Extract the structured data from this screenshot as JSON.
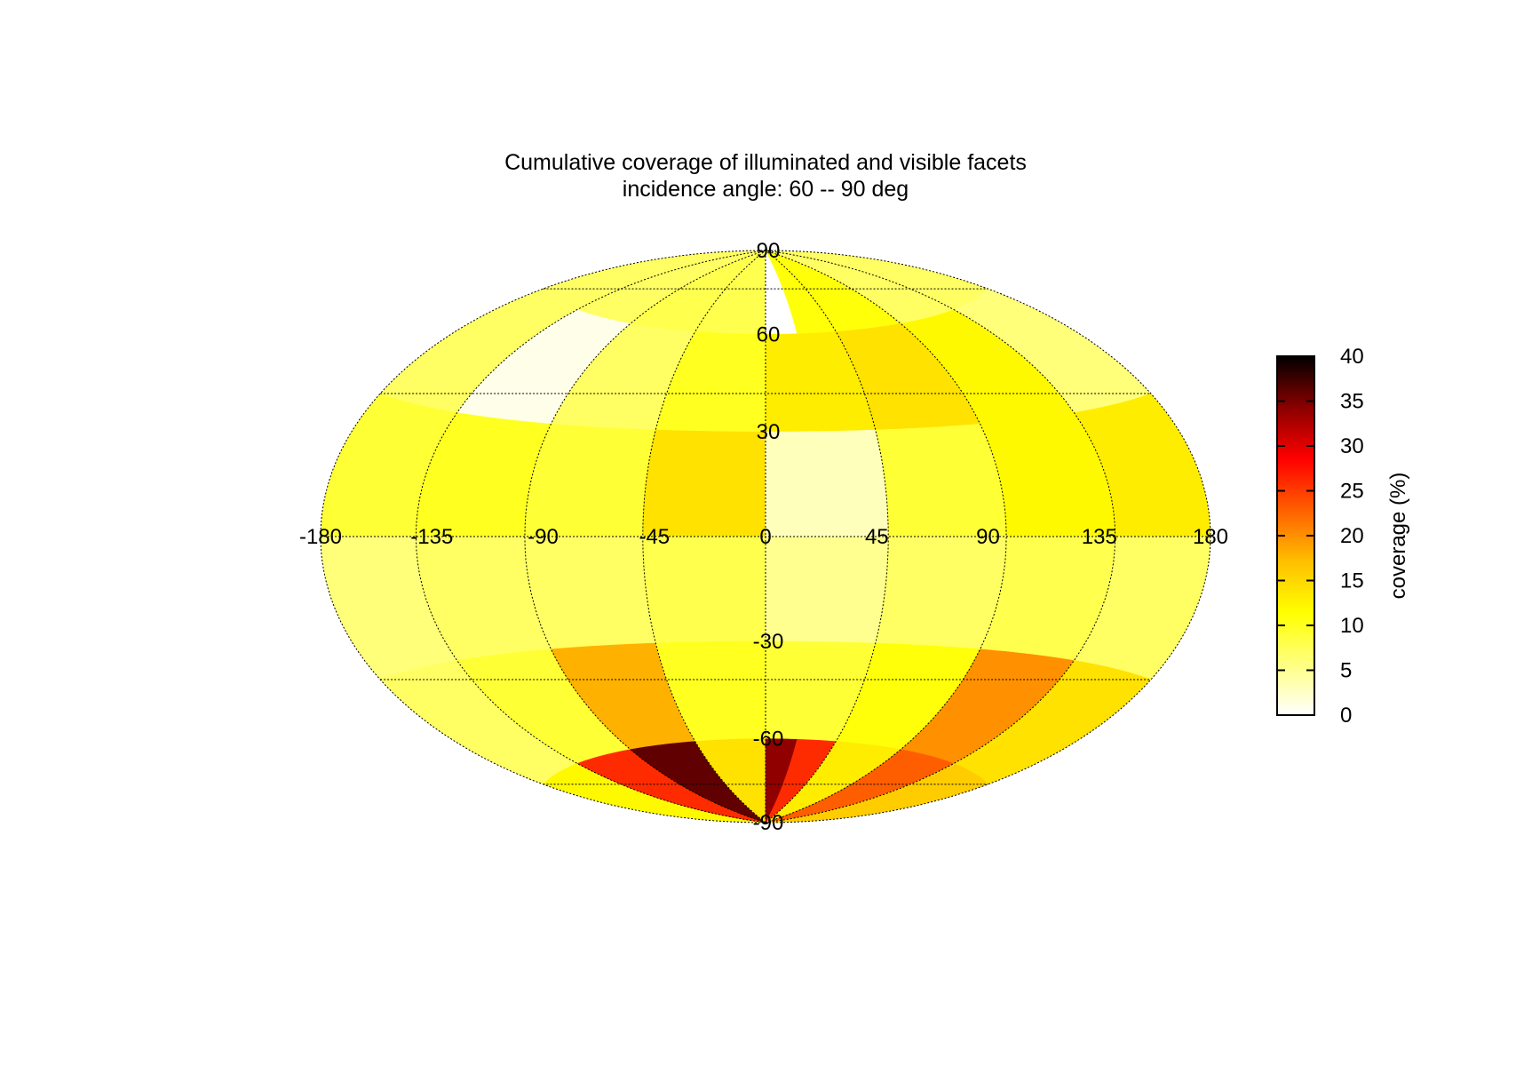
{
  "chart_data": {
    "type": "heatmap",
    "projection": "Hammer-Aitoff (equal-area ellipse)",
    "title": [
      "Cumulative coverage of illuminated and visible facets",
      "incidence angle: 60 -- 90 deg"
    ],
    "xlabel": "",
    "ylabel": "",
    "xlim": [
      -180,
      180
    ],
    "ylim": [
      -90,
      90
    ],
    "lon_ticks": [
      -180,
      -135,
      -90,
      -45,
      0,
      45,
      90,
      135,
      180
    ],
    "lat_ticks": [
      90,
      60,
      30,
      -30,
      -60,
      -90
    ],
    "lon_tick_labels": [
      "-180",
      "-135",
      "-90",
      "-45",
      "0",
      "45",
      "90",
      "135",
      "180"
    ],
    "lat_tick_labels": [
      "90",
      "60",
      "30",
      "-30",
      "-60",
      "-90"
    ],
    "grid": true,
    "colorbar": {
      "label": "coverage (%)",
      "min": 0,
      "max": 40,
      "ticks": [
        0,
        5,
        10,
        15,
        20,
        25,
        30,
        35,
        40
      ],
      "tick_labels": [
        "0",
        "5",
        "10",
        "15",
        "20",
        "25",
        "30",
        "35",
        "40"
      ],
      "colors": [
        "#ffffff",
        "#ffff80",
        "#ffff00",
        "#ffbf00",
        "#ff6000",
        "#ff0000",
        "#8b0000",
        "#000000"
      ]
    },
    "regions": [
      {
        "lon0": -180,
        "lon1": -90,
        "lat0": 60,
        "lat1": 90,
        "value": 7
      },
      {
        "lon0": -90,
        "lon1": 0,
        "lat0": 60,
        "lat1": 90,
        "value": 8
      },
      {
        "lon0": 0,
        "lon1": 20,
        "lat0": 60,
        "lat1": 90,
        "value": 0
      },
      {
        "lon0": 20,
        "lon1": 90,
        "lat0": 60,
        "lat1": 90,
        "value": 11
      },
      {
        "lon0": 90,
        "lon1": 180,
        "lat0": 60,
        "lat1": 90,
        "value": 7
      },
      {
        "lon0": -180,
        "lon1": -135,
        "lat0": 30,
        "lat1": 60,
        "value": 7
      },
      {
        "lon0": -135,
        "lon1": -90,
        "lat0": 30,
        "lat1": 60,
        "value": 1
      },
      {
        "lon0": -90,
        "lon1": -45,
        "lat0": 30,
        "lat1": 60,
        "value": 7
      },
      {
        "lon0": -45,
        "lon1": 0,
        "lat0": 30,
        "lat1": 60,
        "value": 10
      },
      {
        "lon0": 0,
        "lon1": 45,
        "lat0": 30,
        "lat1": 60,
        "value": 13
      },
      {
        "lon0": 45,
        "lon1": 90,
        "lat0": 30,
        "lat1": 60,
        "value": 14
      },
      {
        "lon0": 90,
        "lon1": 135,
        "lat0": 30,
        "lat1": 60,
        "value": 12
      },
      {
        "lon0": 135,
        "lon1": 180,
        "lat0": 30,
        "lat1": 60,
        "value": 6
      },
      {
        "lon0": -180,
        "lon1": -135,
        "lat0": 0,
        "lat1": 30,
        "value": 9
      },
      {
        "lon0": -135,
        "lon1": -90,
        "lat0": 0,
        "lat1": 30,
        "value": 10
      },
      {
        "lon0": -90,
        "lon1": -45,
        "lat0": 0,
        "lat1": 30,
        "value": 9
      },
      {
        "lon0": -45,
        "lon1": 0,
        "lat0": 0,
        "lat1": 30,
        "value": 14
      },
      {
        "lon0": 0,
        "lon1": 45,
        "lat0": 0,
        "lat1": 30,
        "value": 3
      },
      {
        "lon0": 45,
        "lon1": 90,
        "lat0": 0,
        "lat1": 30,
        "value": 9
      },
      {
        "lon0": 90,
        "lon1": 135,
        "lat0": 0,
        "lat1": 30,
        "value": 12
      },
      {
        "lon0": 135,
        "lon1": 180,
        "lat0": 0,
        "lat1": 30,
        "value": 13
      },
      {
        "lon0": -180,
        "lon1": -135,
        "lat0": -30,
        "lat1": 0,
        "value": 6
      },
      {
        "lon0": -135,
        "lon1": -90,
        "lat0": -30,
        "lat1": 0,
        "value": 7
      },
      {
        "lon0": -90,
        "lon1": -45,
        "lat0": -30,
        "lat1": 0,
        "value": 7
      },
      {
        "lon0": -45,
        "lon1": 0,
        "lat0": -30,
        "lat1": 0,
        "value": 8
      },
      {
        "lon0": 0,
        "lon1": 45,
        "lat0": -30,
        "lat1": 0,
        "value": 5
      },
      {
        "lon0": 45,
        "lon1": 90,
        "lat0": -30,
        "lat1": 0,
        "value": 7
      },
      {
        "lon0": 90,
        "lon1": 135,
        "lat0": -30,
        "lat1": 0,
        "value": 8
      },
      {
        "lon0": 135,
        "lon1": 180,
        "lat0": -30,
        "lat1": 0,
        "value": 7
      },
      {
        "lon0": -180,
        "lon1": -135,
        "lat0": -60,
        "lat1": -30,
        "value": 7
      },
      {
        "lon0": -135,
        "lon1": -90,
        "lat0": -60,
        "lat1": -30,
        "value": 9
      },
      {
        "lon0": -90,
        "lon1": -45,
        "lat0": -60,
        "lat1": -30,
        "value": 18
      },
      {
        "lon0": -45,
        "lon1": 0,
        "lat0": -60,
        "lat1": -30,
        "value": 10
      },
      {
        "lon0": 0,
        "lon1": 45,
        "lat0": -60,
        "lat1": -30,
        "value": 9
      },
      {
        "lon0": 45,
        "lon1": 90,
        "lat0": -60,
        "lat1": -30,
        "value": 11
      },
      {
        "lon0": 90,
        "lon1": 135,
        "lat0": -60,
        "lat1": -30,
        "value": 20
      },
      {
        "lon0": 135,
        "lon1": 180,
        "lat0": -60,
        "lat1": -30,
        "value": 14
      },
      {
        "lon0": -180,
        "lon1": -135,
        "lat0": -90,
        "lat1": -60,
        "value": 12
      },
      {
        "lon0": -135,
        "lon1": -90,
        "lat0": -90,
        "lat1": -60,
        "value": 26
      },
      {
        "lon0": -90,
        "lon1": -45,
        "lat0": -90,
        "lat1": -60,
        "value": 36
      },
      {
        "lon0": -45,
        "lon1": 0,
        "lat0": -90,
        "lat1": -60,
        "value": 14
      },
      {
        "lon0": 0,
        "lon1": 20,
        "lat0": -90,
        "lat1": -60,
        "value": 34
      },
      {
        "lon0": 20,
        "lon1": 45,
        "lat0": -90,
        "lat1": -60,
        "value": 26
      },
      {
        "lon0": 45,
        "lon1": 90,
        "lat0": -90,
        "lat1": -60,
        "value": 13
      },
      {
        "lon0": 90,
        "lon1": 135,
        "lat0": -90,
        "lat1": -60,
        "value": 23
      },
      {
        "lon0": 135,
        "lon1": 180,
        "lat0": -90,
        "lat1": -60,
        "value": 16
      }
    ]
  }
}
